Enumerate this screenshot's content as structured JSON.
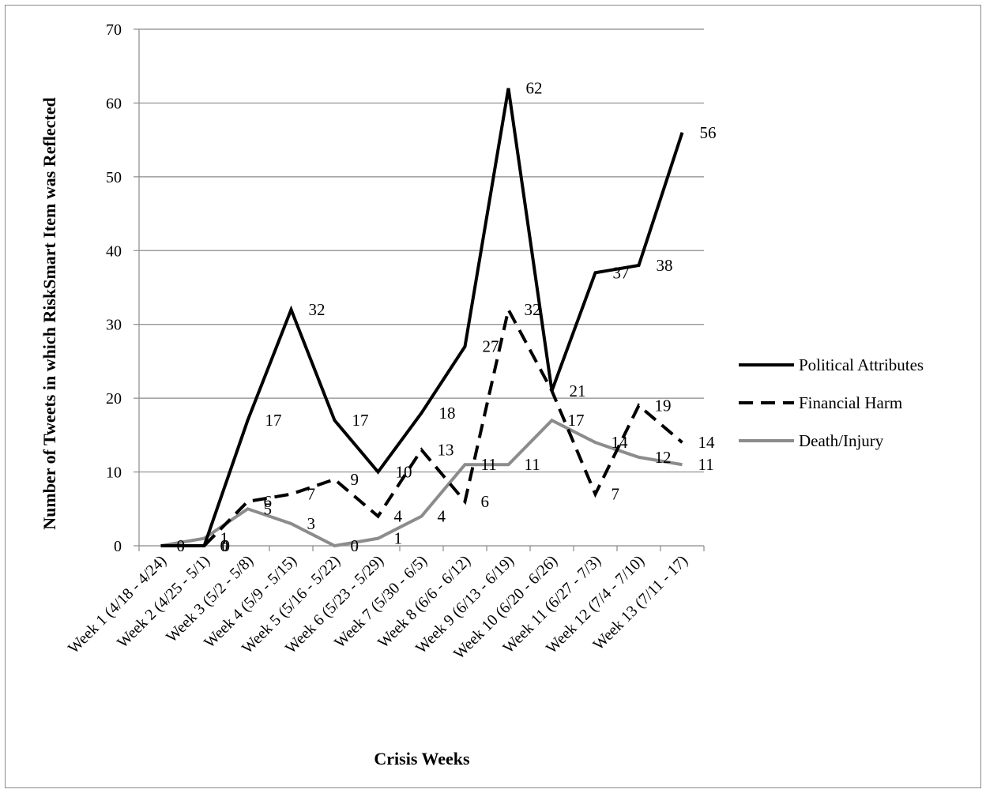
{
  "chart_data": {
    "type": "line",
    "title": "",
    "xlabel": "Crisis Weeks",
    "ylabel": "Number of Tweets in which RiskSmart Item was Reflected",
    "ylim": [
      0,
      70
    ],
    "yticks": [
      0,
      10,
      20,
      30,
      40,
      50,
      60,
      70
    ],
    "grid": "horizontal",
    "legend_position": "right",
    "categories": [
      "Week 1 (4/18 - 4/24)",
      "Week 2 (4/25 - 5/1)",
      "Week 3 (5/2 - 5/8)",
      "Week 4 (5/9 - 5/15)",
      "Week 5 (5/16 - 5/22)",
      "Week 6 (5/23 - 5/29)",
      "Week 7 (5/30 - 6/5)",
      "Week 8 (6/6 - 6/12)",
      "Week 9 (6/13 - 6/19)",
      "Week 10 (6/20 - 6/26)",
      "Week 11 (6/27 - 7/3)",
      "Week 12 (7/4 - 7/10)",
      "Week 13 (7/11 - 17)"
    ],
    "series": [
      {
        "name": "Political Attributes",
        "style": "solid",
        "color": "#000000",
        "values": [
          0,
          0,
          17,
          32,
          17,
          10,
          18,
          27,
          62,
          21,
          37,
          38,
          56
        ],
        "data_labels": [
          "",
          "0",
          "17",
          "32",
          "17",
          "10",
          "18",
          "27",
          "62",
          "21",
          "37",
          "38",
          "56"
        ]
      },
      {
        "name": "Financial Harm",
        "style": "dashed",
        "color": "#000000",
        "values": [
          0,
          0,
          6,
          7,
          9,
          4,
          13,
          6,
          32,
          21,
          7,
          19,
          14
        ],
        "data_labels": [
          "0",
          "0",
          "6",
          "7",
          "9",
          "4",
          "13",
          "6",
          "32",
          "",
          "7",
          "19",
          "14"
        ]
      },
      {
        "name": "Death/Injury",
        "style": "solid",
        "color": "#8c8c8c",
        "values": [
          0,
          1,
          5,
          3,
          0,
          1,
          4,
          11,
          11,
          17,
          14,
          12,
          11
        ],
        "data_labels": [
          "",
          "1",
          "5",
          "3",
          "0",
          "1",
          "4",
          "11",
          "11",
          "17",
          "14",
          "12",
          "11"
        ]
      }
    ]
  }
}
